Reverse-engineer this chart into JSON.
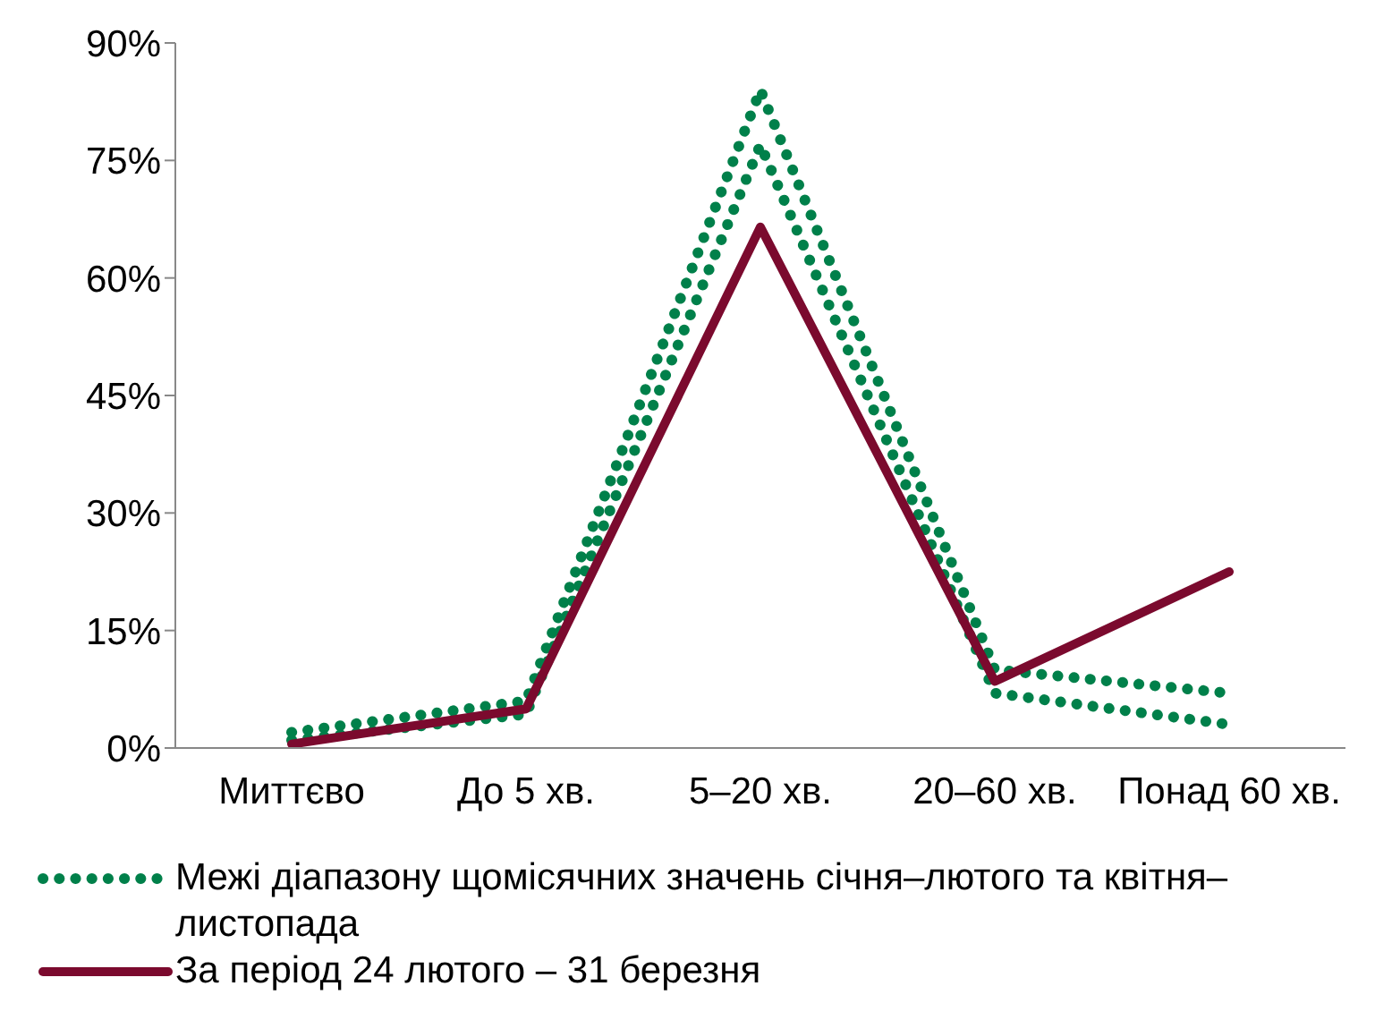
{
  "chart_data": {
    "type": "line",
    "categories": [
      "Миттєво",
      "До 5 хв.",
      "5–20 хв.",
      "20–60 хв.",
      "Понад 60 хв."
    ],
    "series": [
      {
        "name": "Межі діапазону щомісячних значень січня–лютого та квітня–листопада",
        "color": "#00804a",
        "line_style": "dotted",
        "values": [
          2,
          6,
          84,
          10,
          7
        ]
      },
      {
        "color": "#00804a",
        "line_style": "dotted",
        "values": [
          1,
          4.3,
          77,
          7,
          3
        ]
      },
      {
        "name": "За період 24 лютого – 31 березня",
        "color": "#7b0a2e",
        "line_style": "solid",
        "values": [
          0.5,
          5,
          66.5,
          8.5,
          22.5
        ]
      }
    ],
    "ylim": [
      0,
      90
    ],
    "yticks": [
      {
        "value": 0,
        "label": "0%"
      },
      {
        "value": 15,
        "label": "15%"
      },
      {
        "value": 30,
        "label": "30%"
      },
      {
        "value": 45,
        "label": "45%"
      },
      {
        "value": 60,
        "label": "60%"
      },
      {
        "value": 75,
        "label": "75%"
      },
      {
        "value": 90,
        "label": "90%"
      }
    ],
    "grid": false,
    "legend": "bottom",
    "marker": "none"
  }
}
